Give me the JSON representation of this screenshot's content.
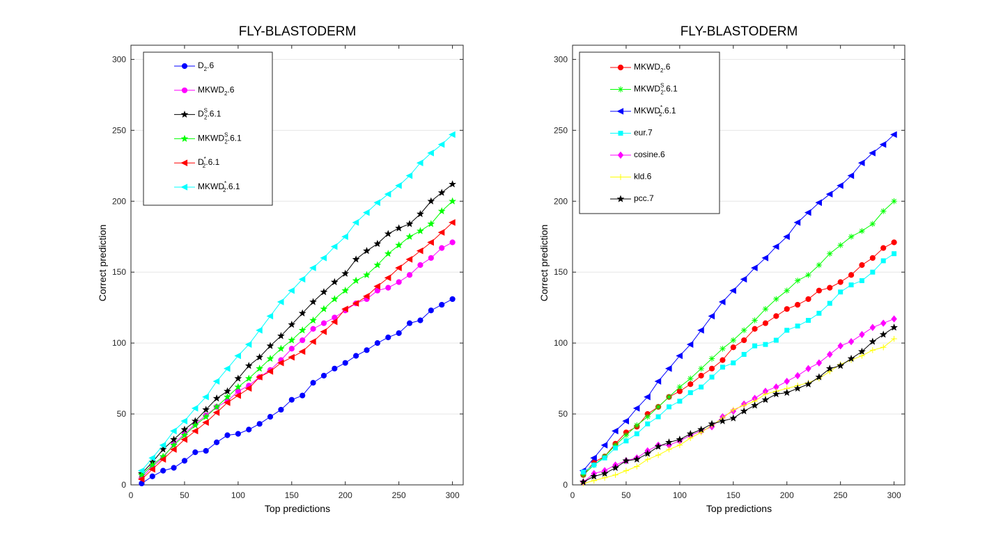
{
  "chart_data": [
    {
      "type": "line",
      "title": "FLY-BLASTODERM",
      "xlabel": "Top predictions",
      "ylabel": "Correct prediction",
      "xlim": [
        0,
        310
      ],
      "ylim": [
        0,
        310
      ],
      "xticks": [
        "0",
        "50",
        "100",
        "150",
        "200",
        "250",
        "300"
      ],
      "yticks": [
        "0",
        "50",
        "100",
        "150",
        "200",
        "250",
        "300"
      ],
      "grid": "horizontal",
      "legend_position": "top-left",
      "x": [
        10,
        20,
        30,
        40,
        50,
        60,
        70,
        80,
        90,
        100,
        110,
        120,
        130,
        140,
        150,
        160,
        170,
        180,
        190,
        200,
        210,
        220,
        230,
        240,
        250,
        260,
        270,
        280,
        290,
        300
      ],
      "series": [
        {
          "name": "D",
          "sub": "2",
          "sup": "",
          "suffix": ".6",
          "color": "#0000ff",
          "marker": "circle",
          "values": [
            1,
            6,
            10,
            12,
            17,
            23,
            24,
            30,
            35,
            36,
            39,
            43,
            48,
            53,
            60,
            63,
            72,
            77,
            82,
            86,
            91,
            95,
            100,
            104,
            107,
            114,
            116,
            123,
            127,
            131
          ]
        },
        {
          "name": "MKWD",
          "sub": "2",
          "sup": "",
          "suffix": ".6",
          "color": "#ff00ff",
          "marker": "circle",
          "values": [
            5,
            13,
            19,
            29,
            36,
            43,
            49,
            55,
            59,
            66,
            70,
            76,
            81,
            88,
            96,
            102,
            110,
            114,
            118,
            123,
            128,
            131,
            137,
            139,
            143,
            148,
            155,
            160,
            167,
            171
          ]
        },
        {
          "name": "D",
          "sub": "2",
          "sup": "S",
          "suffix": ".6.1",
          "color": "#000000",
          "marker": "star",
          "values": [
            8,
            16,
            25,
            32,
            39,
            45,
            53,
            61,
            66,
            75,
            84,
            90,
            98,
            105,
            113,
            121,
            129,
            136,
            143,
            149,
            159,
            165,
            170,
            177,
            181,
            184,
            191,
            200,
            206,
            212
          ]
        },
        {
          "name": "MKWD",
          "sub": "2",
          "sup": "S",
          "suffix": ".6.1",
          "color": "#00ff00",
          "marker": "star",
          "values": [
            7,
            14,
            20,
            28,
            35,
            42,
            48,
            55,
            62,
            69,
            75,
            82,
            89,
            96,
            102,
            109,
            116,
            124,
            131,
            137,
            144,
            148,
            155,
            163,
            169,
            175,
            179,
            184,
            193,
            200
          ]
        },
        {
          "name": "D",
          "sub": "2",
          "sup": "*",
          "suffix": ".6.1",
          "color": "#ff0000",
          "marker": "triangle-left",
          "values": [
            4,
            11,
            18,
            25,
            32,
            38,
            44,
            51,
            58,
            63,
            68,
            76,
            80,
            86,
            90,
            94,
            101,
            108,
            115,
            124,
            128,
            133,
            140,
            146,
            153,
            159,
            165,
            171,
            178,
            185
          ]
        },
        {
          "name": "MKWD",
          "sub": "2",
          "sup": "*",
          "suffix": ".6.1",
          "color": "#00ffff",
          "marker": "triangle-left",
          "values": [
            10,
            19,
            28,
            38,
            45,
            54,
            62,
            73,
            82,
            91,
            99,
            109,
            119,
            129,
            137,
            145,
            153,
            160,
            168,
            175,
            185,
            192,
            199,
            205,
            211,
            218,
            227,
            234,
            240,
            247
          ]
        }
      ]
    },
    {
      "type": "line",
      "title": "FLY-BLASTODERM",
      "xlabel": "Top predictions",
      "ylabel": "Correct prediction",
      "xlim": [
        0,
        310
      ],
      "ylim": [
        0,
        310
      ],
      "xticks": [
        "0",
        "50",
        "100",
        "150",
        "200",
        "250",
        "300"
      ],
      "yticks": [
        "0",
        "50",
        "100",
        "150",
        "200",
        "250",
        "300"
      ],
      "grid": "horizontal",
      "legend_position": "top-left",
      "x": [
        10,
        20,
        30,
        40,
        50,
        60,
        70,
        80,
        90,
        100,
        110,
        120,
        130,
        140,
        150,
        160,
        170,
        180,
        190,
        200,
        210,
        220,
        230,
        240,
        250,
        260,
        270,
        280,
        290,
        300
      ],
      "series": [
        {
          "name": "MKWD",
          "sub": "2",
          "sup": "",
          "suffix": ".6",
          "color": "#ff0000",
          "marker": "circle",
          "values": [
            7,
            16,
            20,
            29,
            37,
            41,
            50,
            55,
            62,
            66,
            71,
            77,
            82,
            88,
            97,
            102,
            110,
            114,
            119,
            124,
            127,
            131,
            137,
            139,
            143,
            148,
            155,
            160,
            167,
            171
          ]
        },
        {
          "name": "MKWD",
          "sub": "2",
          "sup": "S",
          "suffix": ".6.1",
          "color": "#00ff00",
          "marker": "plus-star",
          "values": [
            7,
            14,
            20,
            28,
            35,
            42,
            48,
            55,
            62,
            69,
            75,
            82,
            89,
            96,
            102,
            109,
            116,
            124,
            131,
            137,
            144,
            148,
            155,
            163,
            169,
            175,
            179,
            184,
            193,
            200
          ]
        },
        {
          "name": "MKWD",
          "sub": "2",
          "sup": "*",
          "suffix": ".6.1",
          "color": "#0000ff",
          "marker": "triangle-left",
          "values": [
            10,
            19,
            28,
            38,
            45,
            54,
            62,
            73,
            82,
            91,
            99,
            109,
            119,
            129,
            137,
            145,
            153,
            160,
            168,
            175,
            185,
            192,
            199,
            205,
            211,
            218,
            227,
            234,
            240,
            247
          ]
        },
        {
          "name": "eur.7",
          "sub": "",
          "sup": "",
          "suffix": "",
          "color": "#00ffff",
          "marker": "square",
          "values": [
            9,
            14,
            19,
            26,
            31,
            36,
            43,
            48,
            55,
            59,
            65,
            69,
            76,
            83,
            86,
            92,
            98,
            99,
            102,
            109,
            112,
            116,
            121,
            128,
            136,
            141,
            144,
            150,
            158,
            163
          ]
        },
        {
          "name": "cosine.6",
          "sub": "",
          "sup": "",
          "suffix": "",
          "color": "#ff00ff",
          "marker": "diamond",
          "values": [
            2,
            8,
            10,
            14,
            17,
            19,
            24,
            28,
            28,
            31,
            35,
            38,
            41,
            48,
            52,
            57,
            61,
            66,
            69,
            73,
            77,
            82,
            86,
            92,
            98,
            101,
            106,
            111,
            114,
            117
          ]
        },
        {
          "name": "kld.6",
          "sub": "",
          "sup": "",
          "suffix": "",
          "color": "#ffff00",
          "marker": "plus",
          "values": [
            1,
            3,
            5,
            7,
            10,
            13,
            18,
            21,
            25,
            28,
            33,
            37,
            42,
            47,
            53,
            56,
            59,
            64,
            66,
            68,
            70,
            72,
            75,
            80,
            85,
            88,
            91,
            95,
            97,
            103
          ]
        },
        {
          "name": "pcc.7",
          "sub": "",
          "sup": "",
          "suffix": "",
          "color": "#000000",
          "marker": "star",
          "values": [
            2,
            6,
            8,
            12,
            17,
            18,
            22,
            27,
            30,
            32,
            36,
            39,
            43,
            45,
            47,
            52,
            56,
            60,
            64,
            65,
            68,
            71,
            76,
            82,
            84,
            89,
            94,
            101,
            106,
            111
          ]
        }
      ]
    }
  ]
}
